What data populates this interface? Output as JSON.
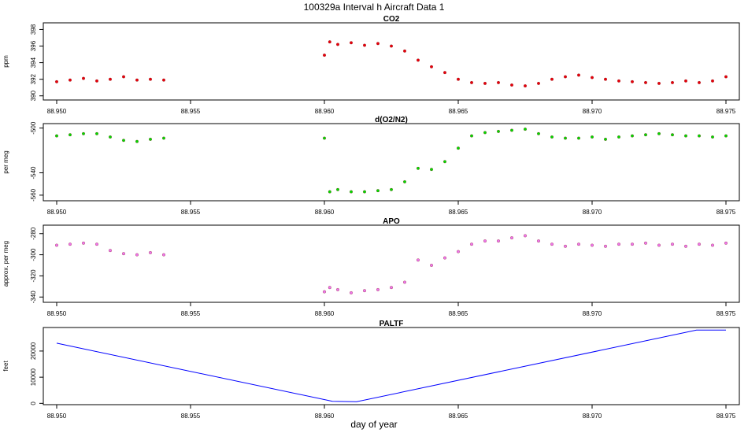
{
  "figure": {
    "title": "100329a   Interval h Aircraft Data 1",
    "xlabel": "day of year"
  },
  "chart_data": [
    {
      "type": "scatter",
      "title": "CO2",
      "ylabel": "ppm",
      "xlim": [
        88.9495,
        88.9755
      ],
      "ylim": [
        389.5,
        398.8
      ],
      "x_ticks": [
        "88.950",
        "88.955",
        "88.960",
        "88.965",
        "88.970",
        "88.975"
      ],
      "y_ticks": [
        "390",
        "392",
        "394",
        "396",
        "398"
      ],
      "grid": false,
      "color": "#e8000b",
      "series": [
        {
          "points": [
            [
              88.95,
              391.7
            ],
            [
              88.9505,
              391.9
            ],
            [
              88.951,
              392.1
            ],
            [
              88.9515,
              391.8
            ],
            [
              88.952,
              392.0
            ],
            [
              88.9525,
              392.3
            ],
            [
              88.953,
              391.9
            ],
            [
              88.9535,
              392.0
            ],
            [
              88.954,
              391.9
            ],
            [
              88.96,
              394.9
            ],
            [
              88.9602,
              396.5
            ],
            [
              88.9605,
              396.2
            ],
            [
              88.961,
              396.4
            ],
            [
              88.9615,
              396.1
            ],
            [
              88.962,
              396.3
            ],
            [
              88.9625,
              396.0
            ],
            [
              88.963,
              395.4
            ],
            [
              88.9635,
              394.3
            ],
            [
              88.964,
              393.5
            ],
            [
              88.9645,
              392.8
            ],
            [
              88.965,
              392.0
            ],
            [
              88.9655,
              391.6
            ],
            [
              88.966,
              391.5
            ],
            [
              88.9665,
              391.6
            ],
            [
              88.967,
              391.3
            ],
            [
              88.9675,
              391.2
            ],
            [
              88.968,
              391.5
            ],
            [
              88.9685,
              392.0
            ],
            [
              88.969,
              392.3
            ],
            [
              88.9695,
              392.5
            ],
            [
              88.97,
              392.2
            ],
            [
              88.9705,
              392.0
            ],
            [
              88.971,
              391.8
            ],
            [
              88.9715,
              391.7
            ],
            [
              88.972,
              391.6
            ],
            [
              88.9725,
              391.5
            ],
            [
              88.973,
              391.6
            ],
            [
              88.9735,
              391.8
            ],
            [
              88.974,
              391.6
            ],
            [
              88.9745,
              391.8
            ],
            [
              88.975,
              392.3
            ]
          ]
        }
      ]
    },
    {
      "type": "scatter",
      "title": "d(O2/N2)",
      "ylabel": "per meg",
      "xlim": [
        88.9495,
        88.9755
      ],
      "ylim": [
        -565,
        -496
      ],
      "x_ticks": [
        "88.950",
        "88.955",
        "88.960",
        "88.965",
        "88.970",
        "88.975"
      ],
      "y_ticks": [
        "-560",
        "-540",
        "-500"
      ],
      "grid": false,
      "color": "#00dd00",
      "series": [
        {
          "points": [
            [
              88.95,
              -507
            ],
            [
              88.9505,
              -506
            ],
            [
              88.951,
              -505
            ],
            [
              88.9515,
              -505
            ],
            [
              88.952,
              -508
            ],
            [
              88.9525,
              -511
            ],
            [
              88.953,
              -512
            ],
            [
              88.9535,
              -510
            ],
            [
              88.954,
              -509
            ],
            [
              88.96,
              -509
            ],
            [
              88.9602,
              -557
            ],
            [
              88.9605,
              -555
            ],
            [
              88.961,
              -557
            ],
            [
              88.9615,
              -557
            ],
            [
              88.962,
              -556
            ],
            [
              88.9625,
              -555
            ],
            [
              88.963,
              -548
            ],
            [
              88.9635,
              -536
            ],
            [
              88.964,
              -537
            ],
            [
              88.9645,
              -530
            ],
            [
              88.965,
              -518
            ],
            [
              88.9655,
              -507
            ],
            [
              88.966,
              -504
            ],
            [
              88.9665,
              -503
            ],
            [
              88.967,
              -502
            ],
            [
              88.9675,
              -501
            ],
            [
              88.968,
              -505
            ],
            [
              88.9685,
              -508
            ],
            [
              88.969,
              -509
            ],
            [
              88.9695,
              -509
            ],
            [
              88.97,
              -508
            ],
            [
              88.9705,
              -510
            ],
            [
              88.971,
              -508
            ],
            [
              88.9715,
              -507
            ],
            [
              88.972,
              -506
            ],
            [
              88.9725,
              -505
            ],
            [
              88.973,
              -506
            ],
            [
              88.9735,
              -507
            ],
            [
              88.974,
              -507
            ],
            [
              88.9745,
              -508
            ],
            [
              88.975,
              -507
            ]
          ]
        }
      ]
    },
    {
      "type": "scatter",
      "title": "APO",
      "ylabel": "approx. per meg",
      "xlim": [
        88.9495,
        88.9755
      ],
      "ylim": [
        -345,
        -272
      ],
      "x_ticks": [
        "88.950",
        "88.955",
        "88.960",
        "88.965",
        "88.970",
        "88.975"
      ],
      "y_ticks": [
        "-340",
        "-320",
        "-300",
        "-280"
      ],
      "grid": false,
      "color": "#ee77ee",
      "series": [
        {
          "points": [
            [
              88.95,
              -291
            ],
            [
              88.9505,
              -290
            ],
            [
              88.951,
              -289
            ],
            [
              88.9515,
              -290
            ],
            [
              88.952,
              -296
            ],
            [
              88.9525,
              -299
            ],
            [
              88.953,
              -300
            ],
            [
              88.9535,
              -298
            ],
            [
              88.954,
              -300
            ],
            [
              88.96,
              -335
            ],
            [
              88.9602,
              -331
            ],
            [
              88.9605,
              -333
            ],
            [
              88.961,
              -336
            ],
            [
              88.9615,
              -334
            ],
            [
              88.962,
              -333
            ],
            [
              88.9625,
              -331
            ],
            [
              88.963,
              -326
            ],
            [
              88.9635,
              -305
            ],
            [
              88.964,
              -310
            ],
            [
              88.9645,
              -303
            ],
            [
              88.965,
              -297
            ],
            [
              88.9655,
              -290
            ],
            [
              88.966,
              -287
            ],
            [
              88.9665,
              -287
            ],
            [
              88.967,
              -284
            ],
            [
              88.9675,
              -282
            ],
            [
              88.968,
              -287
            ],
            [
              88.9685,
              -290
            ],
            [
              88.969,
              -292
            ],
            [
              88.9695,
              -290
            ],
            [
              88.97,
              -291
            ],
            [
              88.9705,
              -292
            ],
            [
              88.971,
              -290
            ],
            [
              88.9715,
              -290
            ],
            [
              88.972,
              -289
            ],
            [
              88.9725,
              -291
            ],
            [
              88.973,
              -290
            ],
            [
              88.9735,
              -292
            ],
            [
              88.974,
              -290
            ],
            [
              88.9745,
              -291
            ],
            [
              88.975,
              -289
            ]
          ]
        }
      ]
    },
    {
      "type": "line",
      "title": "PALTF",
      "ylabel": "feet",
      "xlim": [
        88.9495,
        88.9755
      ],
      "ylim": [
        -500,
        29000
      ],
      "x_ticks": [
        "88.950",
        "88.955",
        "88.960",
        "88.965",
        "88.970",
        "88.975"
      ],
      "y_ticks": [
        "0",
        "10000",
        "20000"
      ],
      "grid": false,
      "color": "#0000ff",
      "series": [
        {
          "points": [
            [
              88.95,
              23000
            ],
            [
              88.9603,
              800
            ],
            [
              88.9612,
              600
            ],
            [
              88.9739,
              28000
            ],
            [
              88.975,
              28000
            ]
          ]
        }
      ]
    }
  ]
}
